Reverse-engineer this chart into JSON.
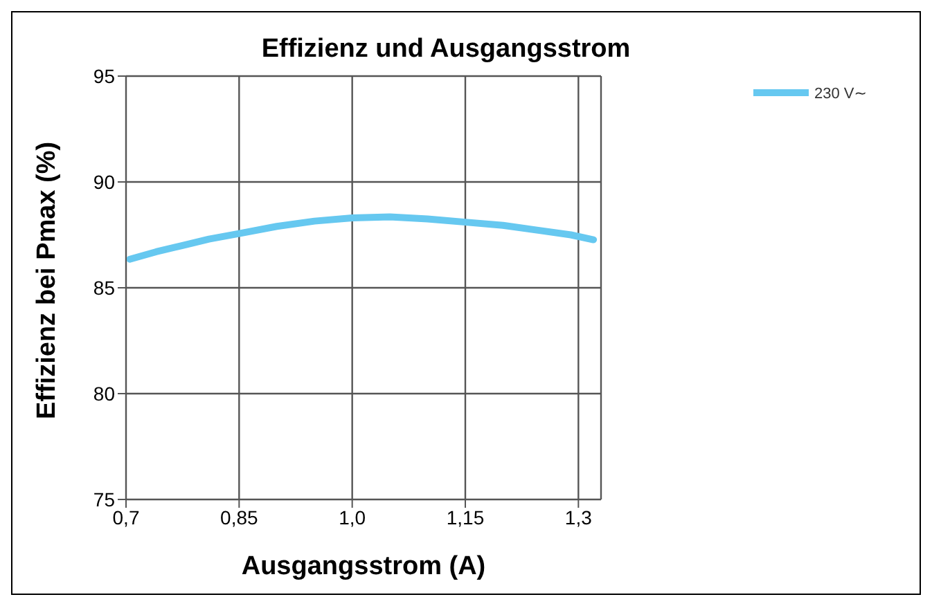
{
  "chart_data": {
    "type": "line",
    "title": "Effizienz und Ausgangsstrom",
    "xlabel": "Ausgangsstrom (A)",
    "ylabel": "Effizienz bei Pmax (%)",
    "x": [
      0.705,
      0.74,
      0.775,
      0.81,
      0.85,
      0.9,
      0.95,
      1.0,
      1.05,
      1.1,
      1.15,
      1.2,
      1.25,
      1.29,
      1.32
    ],
    "series": [
      {
        "name": "230 V∼",
        "color": "#66c8f0",
        "values": [
          86.35,
          86.7,
          87.0,
          87.3,
          87.56,
          87.9,
          88.15,
          88.3,
          88.35,
          88.25,
          88.1,
          87.95,
          87.7,
          87.5,
          87.27
        ]
      }
    ],
    "xlim": [
      0.7,
      1.33
    ],
    "xticks": [
      {
        "value": 0.7,
        "label": "0,7"
      },
      {
        "value": 0.85,
        "label": "0,85"
      },
      {
        "value": 1.0,
        "label": "1,0"
      },
      {
        "value": 1.15,
        "label": "1,15"
      },
      {
        "value": 1.3,
        "label": "1,3"
      }
    ],
    "ylim": [
      75,
      95
    ],
    "yticks": [
      75,
      80,
      85,
      90,
      95
    ],
    "grid": true,
    "legend": "top right",
    "marker": "none",
    "line_style": "solid"
  }
}
